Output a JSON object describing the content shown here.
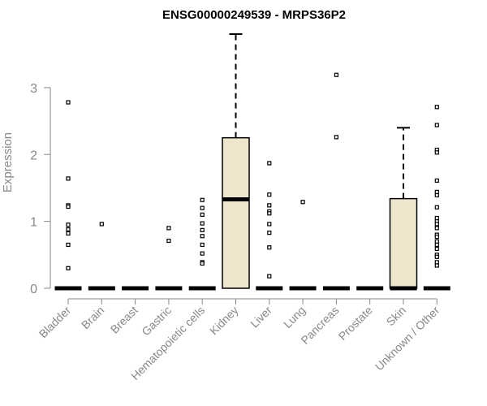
{
  "chart_data": {
    "type": "boxplot",
    "title": "ENSG00000249539 - MRPS36P2",
    "ylabel": "Expression",
    "xlabel": "",
    "ylim": [
      0,
      3.8
    ],
    "yticks": [
      0,
      1,
      2,
      3
    ],
    "box_fill": "#ede6cc",
    "categories": [
      "Bladder",
      "Brain",
      "Breast",
      "Gastric",
      "Hematopoietic cells",
      "Kidney",
      "Liver",
      "Lung",
      "Pancreas",
      "Prostate",
      "Skin",
      "Unknown / Other"
    ],
    "boxes": [
      {
        "category": "Bladder",
        "q1": 0,
        "median": 0,
        "q3": 0,
        "whisker_low": 0,
        "whisker_high": 0,
        "outliers": [
          2.78,
          1.64,
          1.24,
          1.22,
          0.95,
          0.88,
          0.82,
          0.65,
          0.3
        ]
      },
      {
        "category": "Brain",
        "q1": 0,
        "median": 0,
        "q3": 0,
        "whisker_low": 0,
        "whisker_high": 0,
        "outliers": [
          0.96
        ]
      },
      {
        "category": "Breast",
        "q1": 0,
        "median": 0,
        "q3": 0,
        "whisker_low": 0,
        "whisker_high": 0,
        "outliers": []
      },
      {
        "category": "Gastric",
        "q1": 0,
        "median": 0,
        "q3": 0,
        "whisker_low": 0,
        "whisker_high": 0,
        "outliers": [
          0.9,
          0.71
        ]
      },
      {
        "category": "Hematopoietic cells",
        "q1": 0,
        "median": 0,
        "q3": 0,
        "whisker_low": 0,
        "whisker_high": 0,
        "outliers": [
          1.32,
          1.2,
          1.1,
          0.97,
          0.87,
          0.78,
          0.65,
          0.52,
          0.39,
          0.37
        ]
      },
      {
        "category": "Kidney",
        "q1": 0,
        "median": 1.33,
        "q3": 2.25,
        "whisker_low": 0,
        "whisker_high": 3.8,
        "outliers": []
      },
      {
        "category": "Liver",
        "q1": 0,
        "median": 0,
        "q3": 0,
        "whisker_low": 0,
        "whisker_high": 0,
        "outliers": [
          1.87,
          1.4,
          1.24,
          1.15,
          1.12,
          0.96,
          0.83,
          0.61,
          0.18
        ]
      },
      {
        "category": "Lung",
        "q1": 0,
        "median": 0,
        "q3": 0,
        "whisker_low": 0,
        "whisker_high": 0,
        "outliers": [
          1.29
        ]
      },
      {
        "category": "Pancreas",
        "q1": 0,
        "median": 0,
        "q3": 0,
        "whisker_low": 0,
        "whisker_high": 0,
        "outliers": [
          3.19,
          2.26
        ]
      },
      {
        "category": "Prostate",
        "q1": 0,
        "median": 0,
        "q3": 0,
        "whisker_low": 0,
        "whisker_high": 0,
        "outliers": []
      },
      {
        "category": "Skin",
        "q1": 0,
        "median": 0,
        "q3": 1.34,
        "whisker_low": 0,
        "whisker_high": 2.4,
        "outliers": []
      },
      {
        "category": "Unknown / Other",
        "q1": 0,
        "median": 0,
        "q3": 0,
        "whisker_low": 0,
        "whisker_high": 0,
        "outliers": [
          2.71,
          2.44,
          2.07,
          2.03,
          1.61,
          1.44,
          1.39,
          1.21,
          1.05,
          1.0,
          0.96,
          0.9,
          0.8,
          0.77,
          0.7,
          0.65,
          0.59,
          0.5,
          0.47,
          0.39,
          0.34
        ]
      }
    ]
  }
}
